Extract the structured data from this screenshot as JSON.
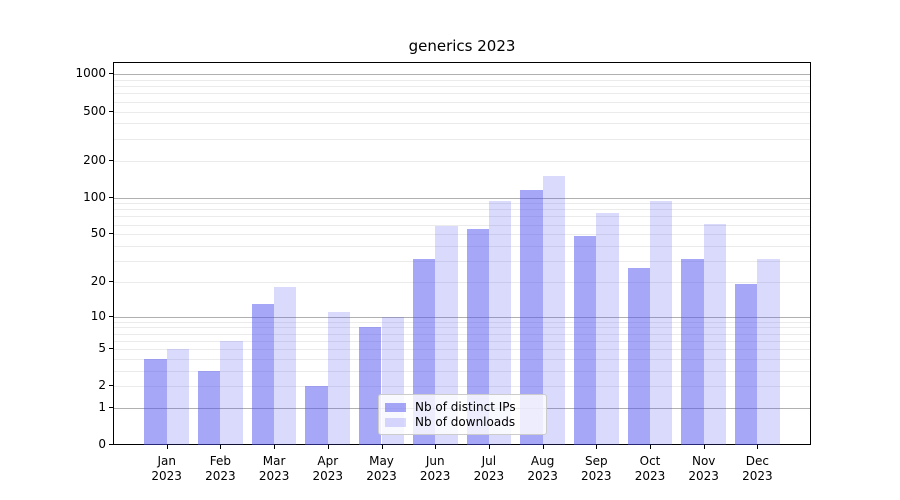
{
  "figure": {
    "background": "#ffffff"
  },
  "chart_data": {
    "type": "bar",
    "title": "generics 2023",
    "categories": [
      "Jan",
      "Feb",
      "Mar",
      "Apr",
      "May",
      "Jun",
      "Jul",
      "Aug",
      "Sep",
      "Oct",
      "Nov",
      "Dec"
    ],
    "year_label": "2023",
    "series": [
      {
        "name": "Nb of distinct IPs",
        "color": "rgba(80,80,240,0.5)",
        "values": [
          4,
          3,
          13,
          2,
          8,
          31,
          55,
          115,
          48,
          26,
          31,
          19
        ]
      },
      {
        "name": "Nb of downloads",
        "color": "rgba(80,80,240,0.21)",
        "values": [
          5,
          6,
          18,
          11,
          10,
          58,
          94,
          150,
          75,
          93,
          61,
          31
        ]
      }
    ],
    "xlabel": "",
    "ylabel": "",
    "yscale": "symlog",
    "yticks": [
      0,
      1,
      2,
      5,
      10,
      20,
      50,
      100,
      200,
      500,
      1000
    ],
    "ylim": [
      0,
      1216
    ],
    "grid": true,
    "gridline_major_color": "#b0b0b0",
    "gridline_minor_color": "#ebebeb",
    "axis_color": "#000000",
    "legend": {
      "position": "lower center",
      "background": "rgba(255,255,255,0.8)",
      "border_color": "#cccccc"
    }
  }
}
